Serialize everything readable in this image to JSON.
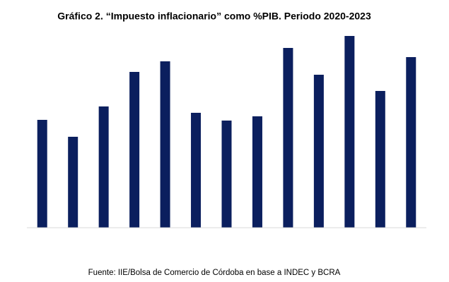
{
  "chart_data": {
    "type": "bar",
    "title": "Gráfico 2. “Impuesto inflacionario” como %PIB. Periodo 2020-2023",
    "source": "Fuente: IIE/Bolsa de Comercio de Córdoba en base a INDEC y BCRA",
    "categories": [
      null,
      null,
      null,
      null,
      null,
      null,
      null,
      null,
      null,
      null,
      null,
      null,
      null
    ],
    "values": [
      1.53,
      1.29,
      1.72,
      2.21,
      2.36,
      1.63,
      1.52,
      1.58,
      2.55,
      2.17,
      2.72,
      1.94,
      2.42
    ],
    "color": "#0b1f5e",
    "ylim": [
      0,
      2.78
    ],
    "grid": false
  }
}
